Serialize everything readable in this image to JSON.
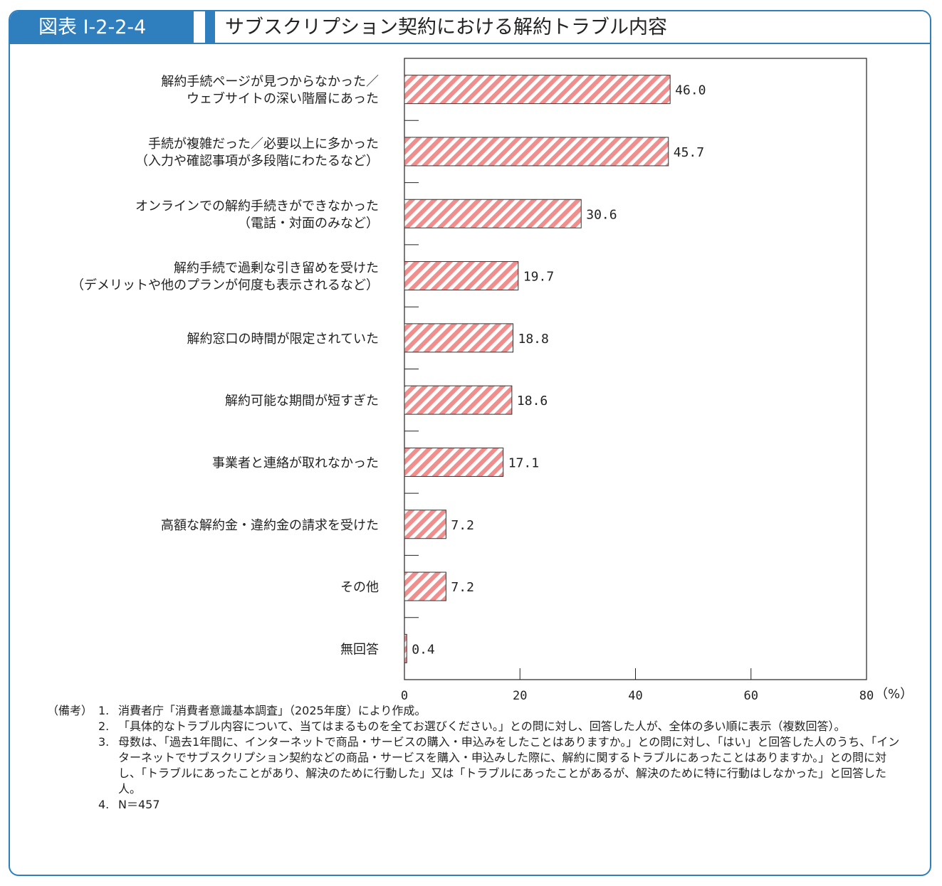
{
  "figure": {
    "label": "図表 I-2-2-4",
    "title": "サブスクリプション契約における解約トラブル内容"
  },
  "chart_data": {
    "type": "bar",
    "orientation": "horizontal",
    "categories": [
      [
        "解約手続ページが見つからなかった／",
        "ウェブサイトの深い階層にあった"
      ],
      [
        "手続が複雑だった／必要以上に多かった",
        "（入力や確認事項が多段階にわたるなど）"
      ],
      [
        "オンラインでの解約手続きができなかった",
        "（電話・対面のみなど）"
      ],
      [
        "解約手続で過剰な引き留めを受けた",
        "（デメリットや他のプランが何度も表示されるなど）"
      ],
      [
        "解約窓口の時間が限定されていた"
      ],
      [
        "解約可能な期間が短すぎた"
      ],
      [
        "事業者と連絡が取れなかった"
      ],
      [
        "高額な解約金・違約金の請求を受けた"
      ],
      [
        "その他"
      ],
      [
        "無回答"
      ]
    ],
    "values": [
      46.0,
      45.7,
      30.6,
      19.7,
      18.8,
      18.6,
      17.1,
      7.2,
      7.2,
      0.4
    ],
    "value_labels": [
      "46.0",
      "45.7",
      "30.6",
      "19.7",
      "18.8",
      "18.6",
      "17.1",
      "7.2",
      "7.2",
      "0.4"
    ],
    "xlim": [
      0,
      80
    ],
    "xticks": [
      0,
      20,
      40,
      60,
      80
    ],
    "unit_label": "（%）",
    "bar_fill": "hatched",
    "bar_color": "#f08d8d",
    "grid": false,
    "legend": "none"
  },
  "notes": {
    "head": "（備考）",
    "items": [
      {
        "num": "1.",
        "text": "消費者庁「消費者意識基本調査」（2025年度）により作成。"
      },
      {
        "num": "2.",
        "text": "「具体的なトラブル内容について、当てはまるものを全てお選びください。」との問に対し、回答した人が、全体の多い順に表示（複数回答）。"
      },
      {
        "num": "3.",
        "text": "母数は、「過去1年間に、インターネットで商品・サービスの購入・申込みをしたことはありますか。」との問に対し、「はい」と回答した人のうち、「インターネットでサブスクリプション契約などの商品・サービスを購入・申込みした際に、解約に関するトラブルにあったことはありますか。」との問に対し、「トラブルにあったことがあり、解決のために行動した」又は「トラブルにあったことがあるが、解決のために特に行動はしなかった」と回答した人。"
      },
      {
        "num": "4.",
        "text": "N＝457"
      }
    ]
  },
  "colors": {
    "accent": "#2f7fbf",
    "bar": "#f08d8d"
  }
}
